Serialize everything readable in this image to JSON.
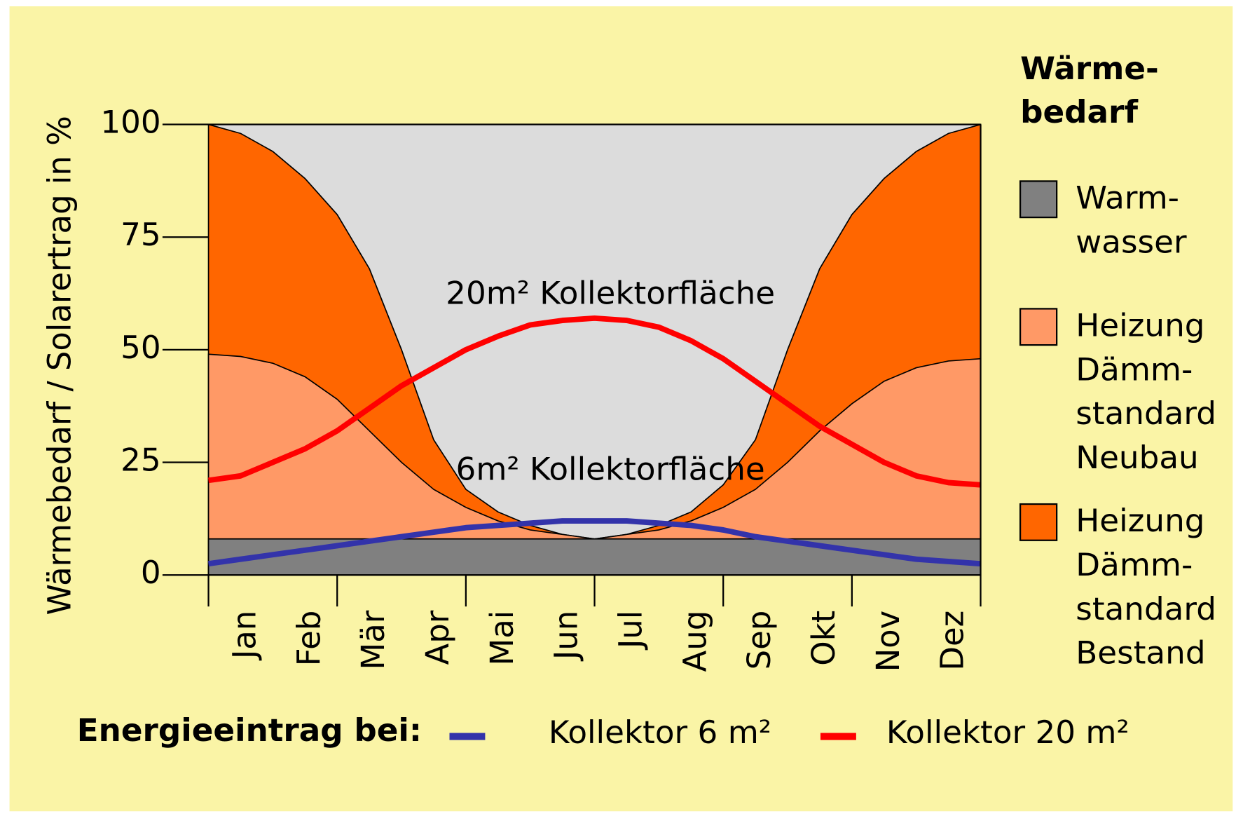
{
  "chart_data": {
    "type": "area",
    "ylabel": "Wärmebedarf / Solarertrag in %",
    "categories": [
      null,
      "Jan",
      null,
      "Feb",
      null,
      "Mär",
      null,
      "Apr",
      null,
      "Mai",
      null,
      "Jun",
      null,
      "Jul",
      null,
      "Aug",
      null,
      "Sep",
      null,
      "Okt",
      null,
      "Nov",
      null,
      "Dez",
      null
    ],
    "ylim": [
      0,
      100
    ],
    "yticks": [
      0,
      25,
      50,
      75,
      100
    ],
    "grid": false,
    "background": "#faf4a6",
    "plot_background": "#dcdcdc",
    "legend_title": [
      "Wärme-",
      "bedarf"
    ],
    "legend_position": "right",
    "line_legend_title": "Energieeintrag bei:",
    "line_legend_position": "bottom",
    "annotations": [
      {
        "text": "20m² Kollektorfläche",
        "x": 12,
        "y": 62
      },
      {
        "text": "6m² Kollektorfläche",
        "x": 12,
        "y": 23
      }
    ],
    "series": [
      {
        "name": [
          "Heizung",
          "Dämm-",
          "standard",
          "Bestand"
        ],
        "type": "area",
        "color": "#ff6600",
        "values": [
          100,
          98,
          94,
          88,
          80,
          68,
          50,
          30,
          19,
          14,
          11,
          9,
          8,
          9,
          11,
          14,
          20,
          30,
          50,
          68,
          80,
          88,
          94,
          98,
          100
        ]
      },
      {
        "name": [
          "Heizung",
          "Dämm-",
          "standard",
          "Neubau"
        ],
        "type": "area",
        "color": "#ff9966",
        "values": [
          49,
          48.5,
          47,
          44,
          39,
          32,
          25,
          19,
          15,
          12,
          10,
          9,
          8,
          9,
          10,
          12,
          15,
          19,
          25,
          32,
          38,
          43,
          46,
          47.5,
          48
        ]
      },
      {
        "name": [
          "Warm-",
          "wasser"
        ],
        "type": "area",
        "color": "#808080",
        "values": [
          8,
          8,
          8,
          8,
          8,
          8,
          8,
          8,
          8,
          8,
          8,
          8,
          8,
          8,
          8,
          8,
          8,
          8,
          8,
          8,
          8,
          8,
          8,
          8,
          8
        ]
      },
      {
        "name": "Kollektor 20 m²",
        "type": "line",
        "color": "#ff0000",
        "values": [
          21,
          22,
          25,
          28,
          32,
          37,
          42,
          46,
          50,
          53,
          55.5,
          56.5,
          57,
          56.5,
          55,
          52,
          48,
          43,
          38,
          33,
          29,
          25,
          22,
          20.5,
          20
        ]
      },
      {
        "name": "Kollektor 6 m²",
        "type": "line",
        "color": "#3333aa",
        "values": [
          2.5,
          3.5,
          4.5,
          5.5,
          6.5,
          7.5,
          8.5,
          9.5,
          10.5,
          11,
          11.5,
          12,
          12,
          12,
          11.5,
          11,
          10,
          8.5,
          7.5,
          6.5,
          5.5,
          4.5,
          3.5,
          3,
          2.5
        ]
      }
    ]
  }
}
